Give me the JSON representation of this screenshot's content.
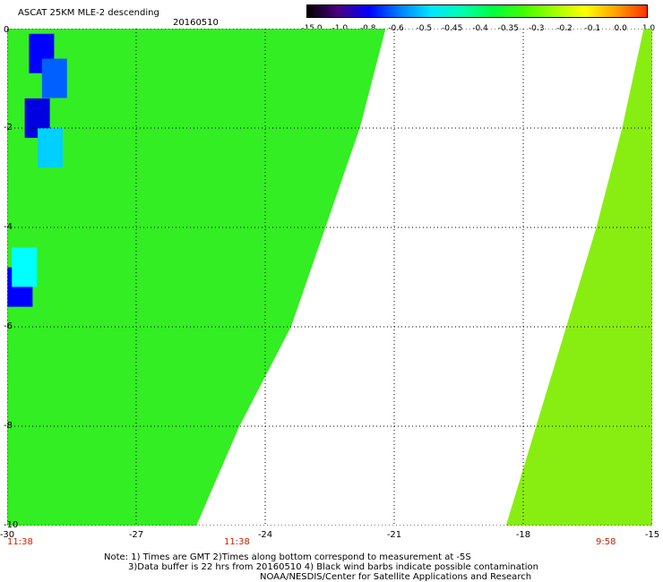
{
  "header": {
    "title": "ASCAT 25KM MLE-2 descending",
    "date": "20160510"
  },
  "colorbar": {
    "labels": [
      "-15.0",
      "-1.0",
      "-0.8",
      "-0.6",
      "-0.5",
      "-0.45",
      "-0.4",
      "-0.35",
      "-0.3",
      "-0.2",
      "-0.1",
      "0.0",
      "1.0"
    ],
    "colors": [
      "#000000",
      "#4a0080",
      "#0000ff",
      "#0080ff",
      "#00e5ff",
      "#00ffb0",
      "#00ff40",
      "#40ff00",
      "#a0ff00",
      "#ffff00",
      "#ffa000",
      "#ff3000"
    ]
  },
  "map": {
    "lon_range": [
      -30,
      -15
    ],
    "lat_range": [
      0,
      -10
    ],
    "x_ticks": [
      "-27",
      "-24",
      "-21",
      "-18",
      "-15"
    ],
    "x_tick_left": "-30",
    "y_ticks": [
      "0",
      "-2",
      "-4",
      "-6",
      "-8",
      "-10"
    ],
    "times": {
      "left": "11:38",
      "mid": "11:38",
      "right": "9:58"
    },
    "left_swath_east_edge": [
      [
        0,
        -21.2
      ],
      [
        -2,
        -21.8
      ],
      [
        -4,
        -22.6
      ],
      [
        -6,
        -23.4
      ],
      [
        -8,
        -24.6
      ],
      [
        -10,
        -25.6
      ]
    ],
    "right_swath_west_edge": [
      [
        0,
        -15.2
      ],
      [
        -2,
        -15.7
      ],
      [
        -4,
        -16.3
      ],
      [
        -6,
        -17.0
      ],
      [
        -8,
        -17.7
      ],
      [
        -10,
        -18.4
      ]
    ],
    "low_value_patches": [
      {
        "lat": -0.5,
        "lon": -29.2,
        "color": "#0000ff"
      },
      {
        "lat": -1.0,
        "lon": -28.9,
        "color": "#0060ff"
      },
      {
        "lat": -1.8,
        "lon": -29.3,
        "color": "#0000e0"
      },
      {
        "lat": -2.4,
        "lon": -29.0,
        "color": "#00d0ff"
      },
      {
        "lat": -5.2,
        "lon": -29.7,
        "color": "#0000ff"
      },
      {
        "lat": -4.8,
        "lon": -29.6,
        "color": "#00ffff"
      }
    ]
  },
  "notes": [
    "Note: 1) Times are GMT 2)Times along bottom correspond to measurement at -5S",
    "3)Data buffer is 22 hrs from 20160510 4) Black wind barbs indicate possible contamination",
    "NOAA/NESDIS/Center for Satellite Applications and Research"
  ]
}
